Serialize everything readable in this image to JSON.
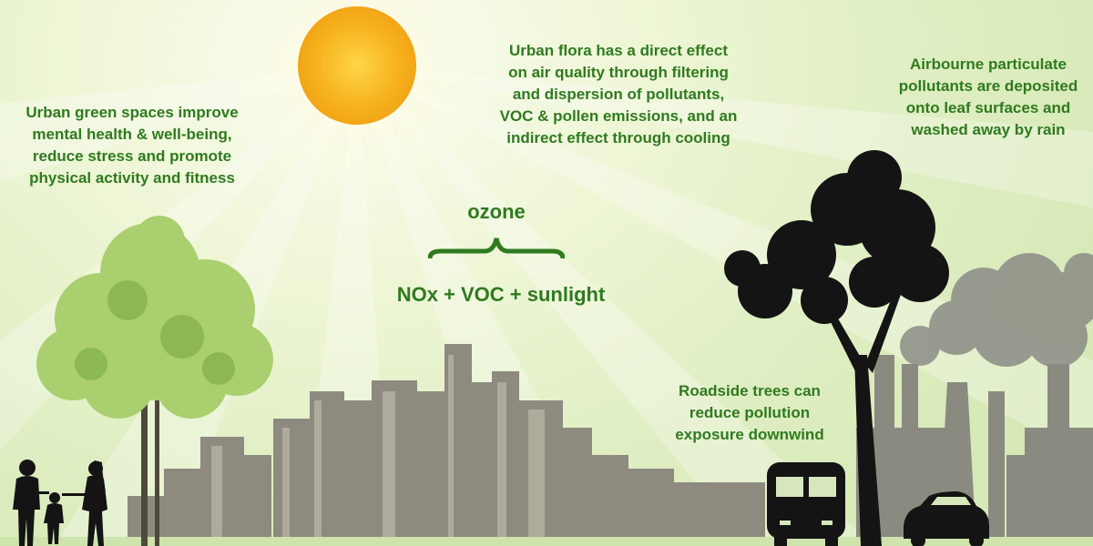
{
  "texts": {
    "green_spaces": [
      "Urban green spaces improve",
      "mental health & well-being,",
      "reduce stress and promote",
      "physical activity and fitness"
    ],
    "flora_effect": [
      "Urban flora has a direct effect",
      "on air quality through filtering",
      "and dispersion of pollutants,",
      "VOC & pollen emissions, and an",
      "indirect effect through cooling"
    ],
    "particulates": [
      "Airbourne particulate",
      "pollutants are deposited",
      "onto leaf surfaces and",
      "washed away by rain"
    ],
    "roadside": [
      "Roadside trees can",
      "reduce pollution",
      "exposure downwind"
    ],
    "ozone_label": "ozone",
    "formula": "NOx + VOC + sunlight"
  },
  "colors": {
    "text_green": "#2f7a1f",
    "sun": "#f6b21c",
    "city": "#8e8a80",
    "silhouette": "#141414"
  },
  "icons": [
    "sun-icon",
    "light-tree-icon",
    "dark-tree-icon",
    "family-icon",
    "bus-icon",
    "car-icon",
    "factory-icon",
    "smoke-icon",
    "city-skyline-icon"
  ]
}
